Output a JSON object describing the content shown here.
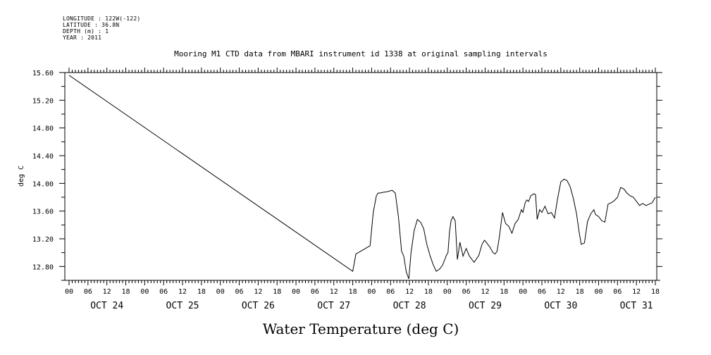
{
  "metadata": [
    "LONGITUDE : 122W(-122)",
    "LATITUDE : 36.8N",
    "DEPTH (m) : 1",
    "YEAR : 2011"
  ],
  "chart_data": {
    "type": "line",
    "title": "Mooring M1 CTD data from MBARI instrument id 1338 at original sampling intervals",
    "xlabel": "Water Temperature (deg C)",
    "ylabel": "deg C",
    "ylim": [
      12.6,
      15.6
    ],
    "yticks": [
      12.8,
      13.2,
      13.6,
      14.0,
      14.4,
      14.8,
      15.2,
      15.6
    ],
    "ytick_labels": [
      "12.80",
      "13.20",
      "13.60",
      "14.00",
      "14.40",
      "14.80",
      "15.20",
      "15.60"
    ],
    "xlim_hours": [
      0,
      186
    ],
    "hour_ticks": [
      "00",
      "06",
      "12",
      "18"
    ],
    "day_labels": [
      "OCT 24",
      "OCT 25",
      "OCT 26",
      "OCT 27",
      "OCT 28",
      "OCT 29",
      "OCT 30",
      "OCT 31"
    ],
    "grid": false,
    "series": [
      {
        "x_hours_from_oct24_00": [
          0,
          90,
          91,
          92.5,
          94,
          95.5,
          96.5,
          97.5,
          98,
          98.5,
          99.5,
          101,
          102.5,
          103.5,
          104.5,
          105.5,
          106.2,
          107,
          107.8,
          108.5,
          109.5,
          110.5,
          111.5,
          112.5,
          113.5,
          114.5,
          115.5,
          116.5,
          117.5,
          118.5,
          119.2,
          119.7,
          120.2,
          120.7,
          121.2,
          121.8,
          122.5,
          123.2,
          124,
          125,
          126,
          127,
          128.5,
          130,
          131,
          131.8,
          132.5,
          133.5,
          134.5,
          135.2,
          135.8,
          136.5,
          137.5,
          138.5,
          139.5,
          140.5,
          141.5,
          142.5,
          143.5,
          144,
          144.7,
          145.2,
          145.8,
          146.5,
          147.5,
          148,
          148.5,
          149.3,
          150,
          151,
          152,
          153,
          154,
          155,
          156,
          157,
          158,
          159,
          160,
          161,
          161.8,
          162.5,
          163.5,
          164.5,
          165.5,
          166.5,
          167,
          168,
          169,
          170,
          171,
          172,
          173,
          174,
          175,
          176,
          177,
          178,
          179,
          180,
          181,
          182,
          183,
          184,
          185,
          186
        ],
        "y_deg_c": [
          15.56,
          12.73,
          12.98,
          13.02,
          13.06,
          13.1,
          13.58,
          13.82,
          13.86,
          13.86,
          13.87,
          13.88,
          13.9,
          13.86,
          13.52,
          13.02,
          12.95,
          12.72,
          12.62,
          13.0,
          13.32,
          13.48,
          13.44,
          13.35,
          13.12,
          12.96,
          12.83,
          12.73,
          12.76,
          12.82,
          12.9,
          12.96,
          13.0,
          13.3,
          13.46,
          13.52,
          13.46,
          12.9,
          13.15,
          12.95,
          13.06,
          12.95,
          12.86,
          12.96,
          13.12,
          13.18,
          13.14,
          13.08,
          13.0,
          12.98,
          13.02,
          13.22,
          13.58,
          13.42,
          13.38,
          13.28,
          13.42,
          13.48,
          13.62,
          13.58,
          13.72,
          13.76,
          13.74,
          13.82,
          13.85,
          13.84,
          13.48,
          13.62,
          13.58,
          13.67,
          13.56,
          13.58,
          13.5,
          13.78,
          14.02,
          14.06,
          14.04,
          13.95,
          13.78,
          13.56,
          13.3,
          13.12,
          13.14,
          13.45,
          13.56,
          13.62,
          13.55,
          13.52,
          13.46,
          13.44,
          13.7,
          13.72,
          13.75,
          13.8,
          13.94,
          13.92,
          13.86,
          13.82,
          13.8,
          13.74,
          13.68,
          13.71,
          13.68,
          13.7,
          13.72,
          13.8
        ]
      }
    ]
  }
}
